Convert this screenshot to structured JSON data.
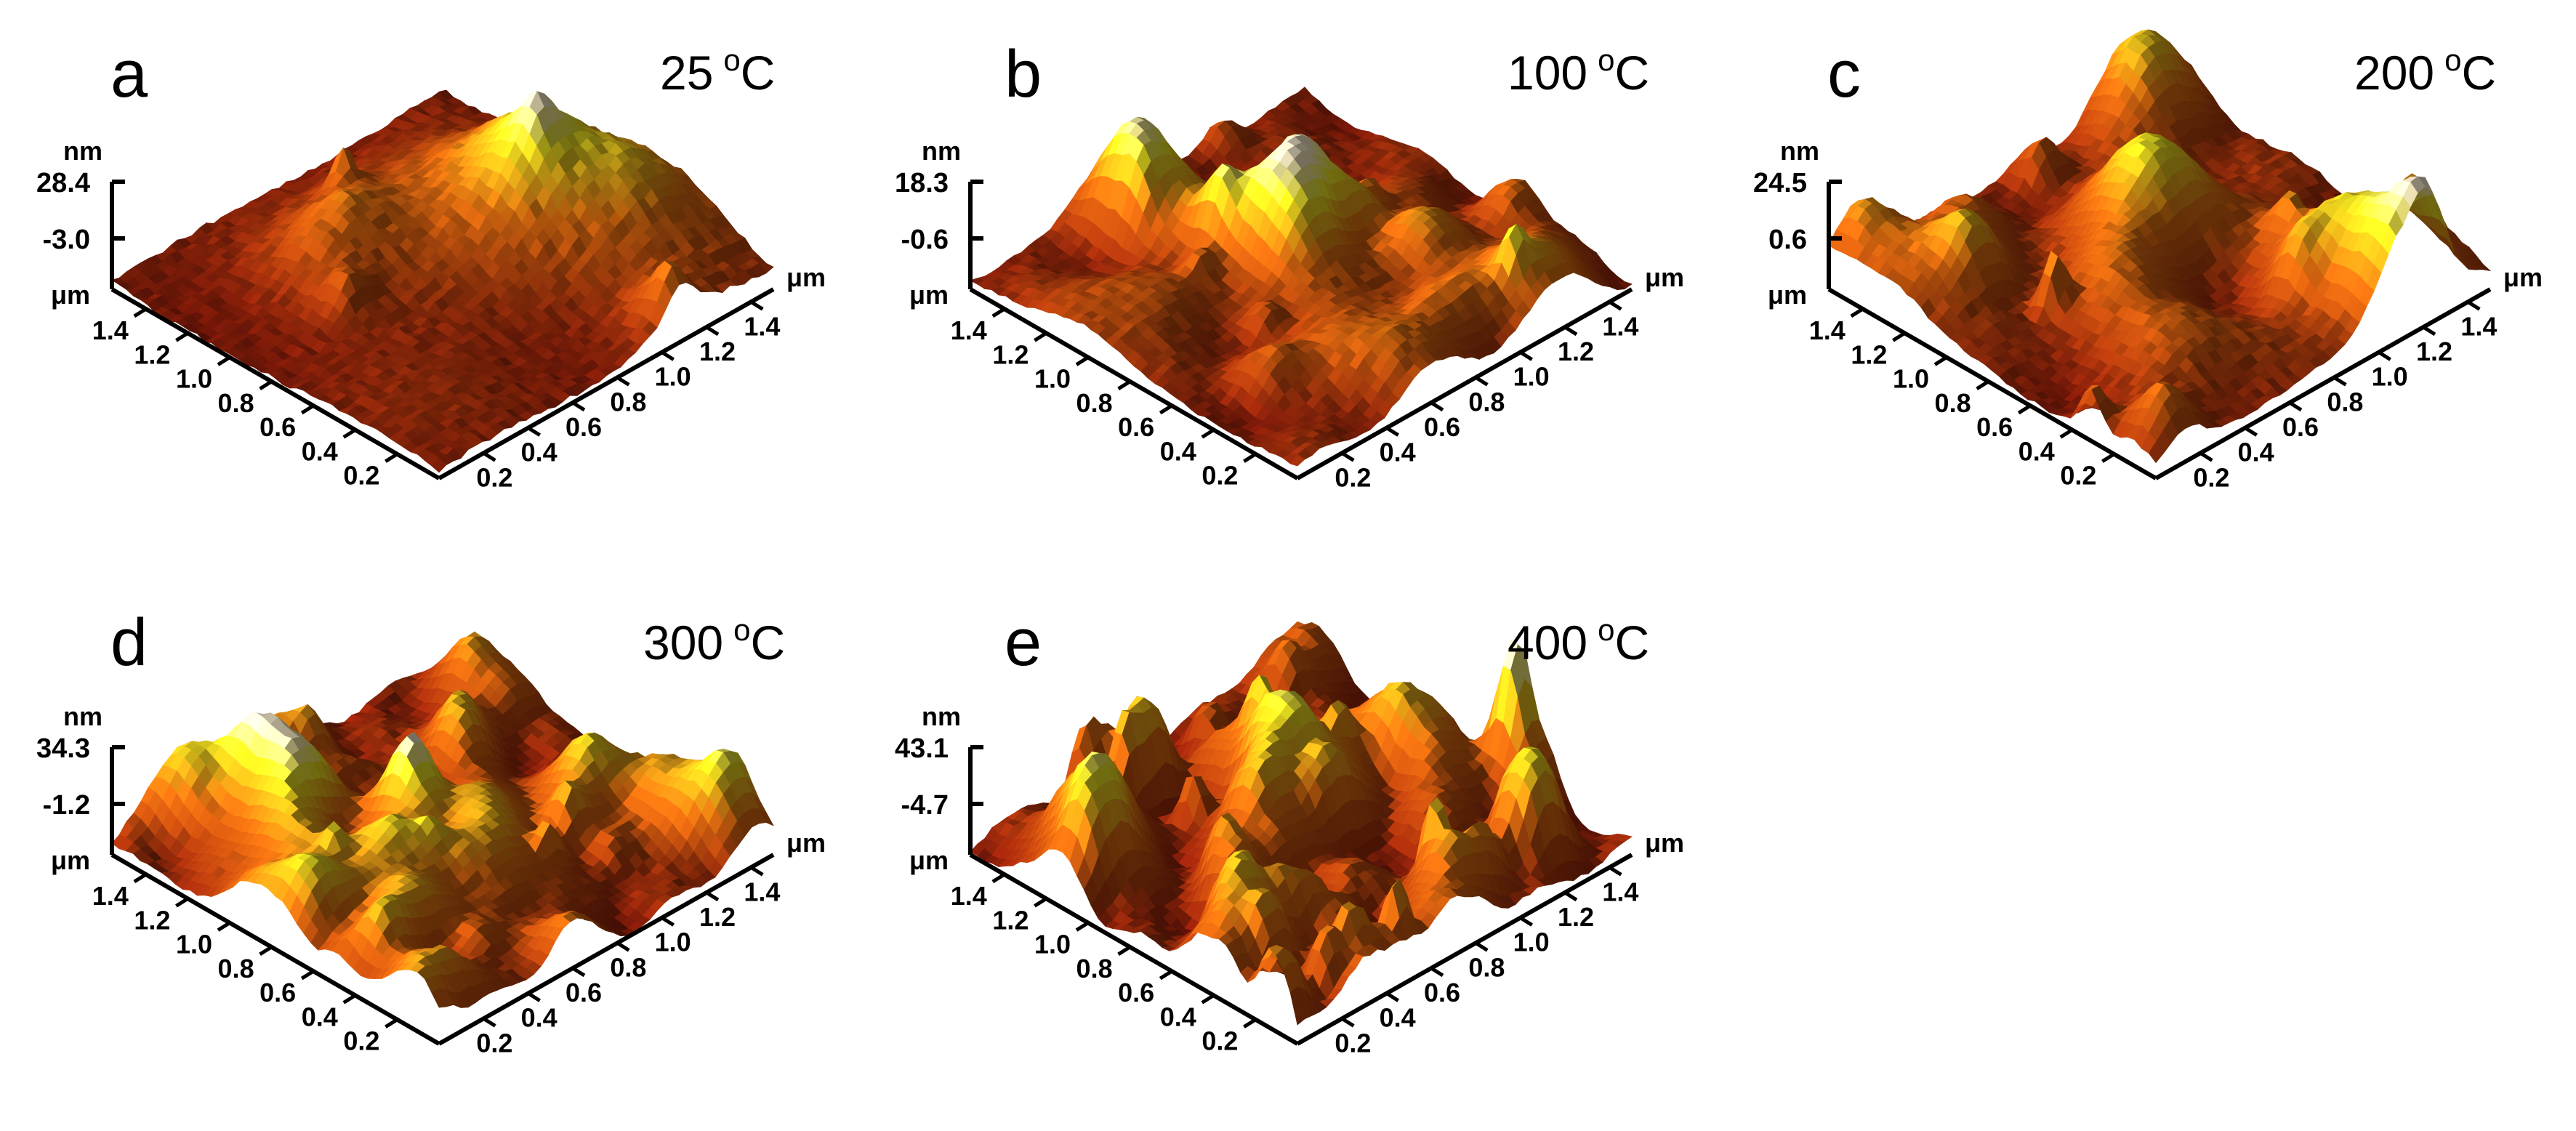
{
  "figure": {
    "panels": [
      {
        "letter": "a",
        "temp_value": "25",
        "temp_unit": "C",
        "degree_symbol": "o",
        "z_unit": "nm",
        "z_max": "28.4",
        "z_mid": "-3.0",
        "left_axis_unit": "μm",
        "right_axis_unit": "μm",
        "left_ticks": [
          "1.4",
          "1.2",
          "1.0",
          "0.8",
          "0.6",
          "0.4",
          "0.2"
        ],
        "right_ticks": [
          "0.2",
          "0.4",
          "0.6",
          "0.8",
          "1.0",
          "1.2",
          "1.4"
        ]
      },
      {
        "letter": "b",
        "temp_value": "100",
        "temp_unit": "C",
        "degree_symbol": "o",
        "z_unit": "nm",
        "z_max": "18.3",
        "z_mid": "-0.6",
        "left_axis_unit": "μm",
        "right_axis_unit": "μm",
        "left_ticks": [
          "1.4",
          "1.2",
          "1.0",
          "0.8",
          "0.6",
          "0.4",
          "0.2"
        ],
        "right_ticks": [
          "0.2",
          "0.4",
          "0.6",
          "0.8",
          "1.0",
          "1.2",
          "1.4"
        ]
      },
      {
        "letter": "c",
        "temp_value": "200",
        "temp_unit": "C",
        "degree_symbol": "o",
        "z_unit": "nm",
        "z_max": "24.5",
        "z_mid": "0.6",
        "left_axis_unit": "μm",
        "right_axis_unit": "μm",
        "left_ticks": [
          "1.4",
          "1.2",
          "1.0",
          "0.8",
          "0.6",
          "0.4",
          "0.2"
        ],
        "right_ticks": [
          "0.2",
          "0.4",
          "0.6",
          "0.8",
          "1.0",
          "1.2",
          "1.4"
        ]
      },
      {
        "letter": "d",
        "temp_value": "300",
        "temp_unit": "C",
        "degree_symbol": "o",
        "z_unit": "nm",
        "z_max": "34.3",
        "z_mid": "-1.2",
        "left_axis_unit": "μm",
        "right_axis_unit": "μm",
        "left_ticks": [
          "1.4",
          "1.2",
          "1.0",
          "0.8",
          "0.6",
          "0.4",
          "0.2"
        ],
        "right_ticks": [
          "0.2",
          "0.4",
          "0.6",
          "0.8",
          "1.0",
          "1.2",
          "1.4"
        ]
      },
      {
        "letter": "e",
        "temp_value": "400",
        "temp_unit": "C",
        "degree_symbol": "o",
        "z_unit": "nm",
        "z_max": "43.1",
        "z_mid": "-4.7",
        "left_axis_unit": "μm",
        "right_axis_unit": "μm",
        "left_ticks": [
          "1.4",
          "1.2",
          "1.0",
          "0.8",
          "0.6",
          "0.4",
          "0.2"
        ],
        "right_ticks": [
          "0.2",
          "0.4",
          "0.6",
          "0.8",
          "1.0",
          "1.2",
          "1.4"
        ]
      }
    ],
    "colors": {
      "surface_low": "#8b1a0a",
      "surface_mid": "#d96a10",
      "surface_high": "#e8e020",
      "surface_peak": "#f2e6c8",
      "axis": "#000000"
    }
  }
}
